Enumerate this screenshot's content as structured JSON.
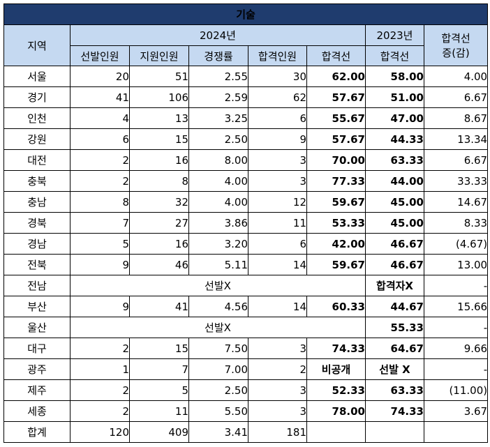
{
  "title": "기술",
  "headers": {
    "region": "지역",
    "year_2024": "2024년",
    "year_2023": "2023년",
    "diff_line1": "합격선",
    "diff_line2": "증(감)",
    "selected": "선발인원",
    "applicants": "지원인원",
    "competition": "경쟁률",
    "passed": "합격인원",
    "cutoff_2024": "합격선",
    "cutoff_2023": "합격선"
  },
  "rows": [
    {
      "region": "서울",
      "selected": "20",
      "applicants": "51",
      "competition": "2.55",
      "passed": "30",
      "cutoff_2024": "62.00",
      "cutoff_2023": "58.00",
      "diff": "4.00"
    },
    {
      "region": "경기",
      "selected": "41",
      "applicants": "106",
      "competition": "2.59",
      "passed": "62",
      "cutoff_2024": "57.67",
      "cutoff_2023": "51.00",
      "diff": "6.67"
    },
    {
      "region": "인천",
      "selected": "4",
      "applicants": "13",
      "competition": "3.25",
      "passed": "6",
      "cutoff_2024": "55.67",
      "cutoff_2023": "47.00",
      "diff": "8.67"
    },
    {
      "region": "강원",
      "selected": "6",
      "applicants": "15",
      "competition": "2.50",
      "passed": "9",
      "cutoff_2024": "57.67",
      "cutoff_2023": "44.33",
      "diff": "13.34"
    },
    {
      "region": "대전",
      "selected": "2",
      "applicants": "16",
      "competition": "8.00",
      "passed": "3",
      "cutoff_2024": "70.00",
      "cutoff_2023": "63.33",
      "diff": "6.67"
    },
    {
      "region": "충북",
      "selected": "2",
      "applicants": "8",
      "competition": "4.00",
      "passed": "3",
      "cutoff_2024": "77.33",
      "cutoff_2023": "44.00",
      "diff": "33.33"
    },
    {
      "region": "충남",
      "selected": "8",
      "applicants": "32",
      "competition": "4.00",
      "passed": "12",
      "cutoff_2024": "59.67",
      "cutoff_2023": "45.00",
      "diff": "14.67"
    },
    {
      "region": "경북",
      "selected": "7",
      "applicants": "27",
      "competition": "3.86",
      "passed": "11",
      "cutoff_2024": "53.33",
      "cutoff_2023": "45.00",
      "diff": "8.33"
    },
    {
      "region": "경남",
      "selected": "5",
      "applicants": "16",
      "competition": "3.20",
      "passed": "6",
      "cutoff_2024": "42.00",
      "cutoff_2023": "46.67",
      "diff": "(4.67)",
      "diff_negative": true
    },
    {
      "region": "전북",
      "selected": "9",
      "applicants": "46",
      "competition": "5.11",
      "passed": "14",
      "cutoff_2024": "59.67",
      "cutoff_2023": "46.67",
      "diff": "13.00"
    },
    {
      "region": "전남",
      "merged_2024": "선발X",
      "cutoff_2023": "합격자X",
      "diff": "-"
    },
    {
      "region": "부산",
      "selected": "9",
      "applicants": "41",
      "competition": "4.56",
      "passed": "14",
      "cutoff_2024": "60.33",
      "cutoff_2023": "44.67",
      "diff": "15.66"
    },
    {
      "region": "울산",
      "merged_2024": "선발X",
      "cutoff_2023": "55.33",
      "diff": "-"
    },
    {
      "region": "대구",
      "selected": "2",
      "applicants": "15",
      "competition": "7.50",
      "passed": "3",
      "cutoff_2024": "74.33",
      "cutoff_2023": "64.67",
      "diff": "9.66"
    },
    {
      "region": "광주",
      "selected": "1",
      "applicants": "7",
      "competition": "7.00",
      "passed": "2",
      "cutoff_2024": "비공개",
      "cutoff_2023": "선발 X",
      "diff": "-"
    },
    {
      "region": "제주",
      "selected": "2",
      "applicants": "5",
      "competition": "2.50",
      "passed": "3",
      "cutoff_2024": "52.33",
      "cutoff_2023": "63.33",
      "diff": "(11.00)",
      "diff_negative": true
    },
    {
      "region": "세종",
      "selected": "2",
      "applicants": "11",
      "competition": "5.50",
      "passed": "3",
      "cutoff_2024": "78.00",
      "cutoff_2023": "74.33",
      "diff": "3.67"
    },
    {
      "region": "합계",
      "selected": "120",
      "applicants": "409",
      "competition": "3.41",
      "passed": "181",
      "cutoff_2024": "",
      "cutoff_2023": "",
      "diff": ""
    }
  ],
  "colors": {
    "title_bg": "#1f3c6e",
    "header_bg": "#c5d9f1",
    "cutoff_text": "#1f7ac0",
    "negative_text": "#e02020"
  }
}
